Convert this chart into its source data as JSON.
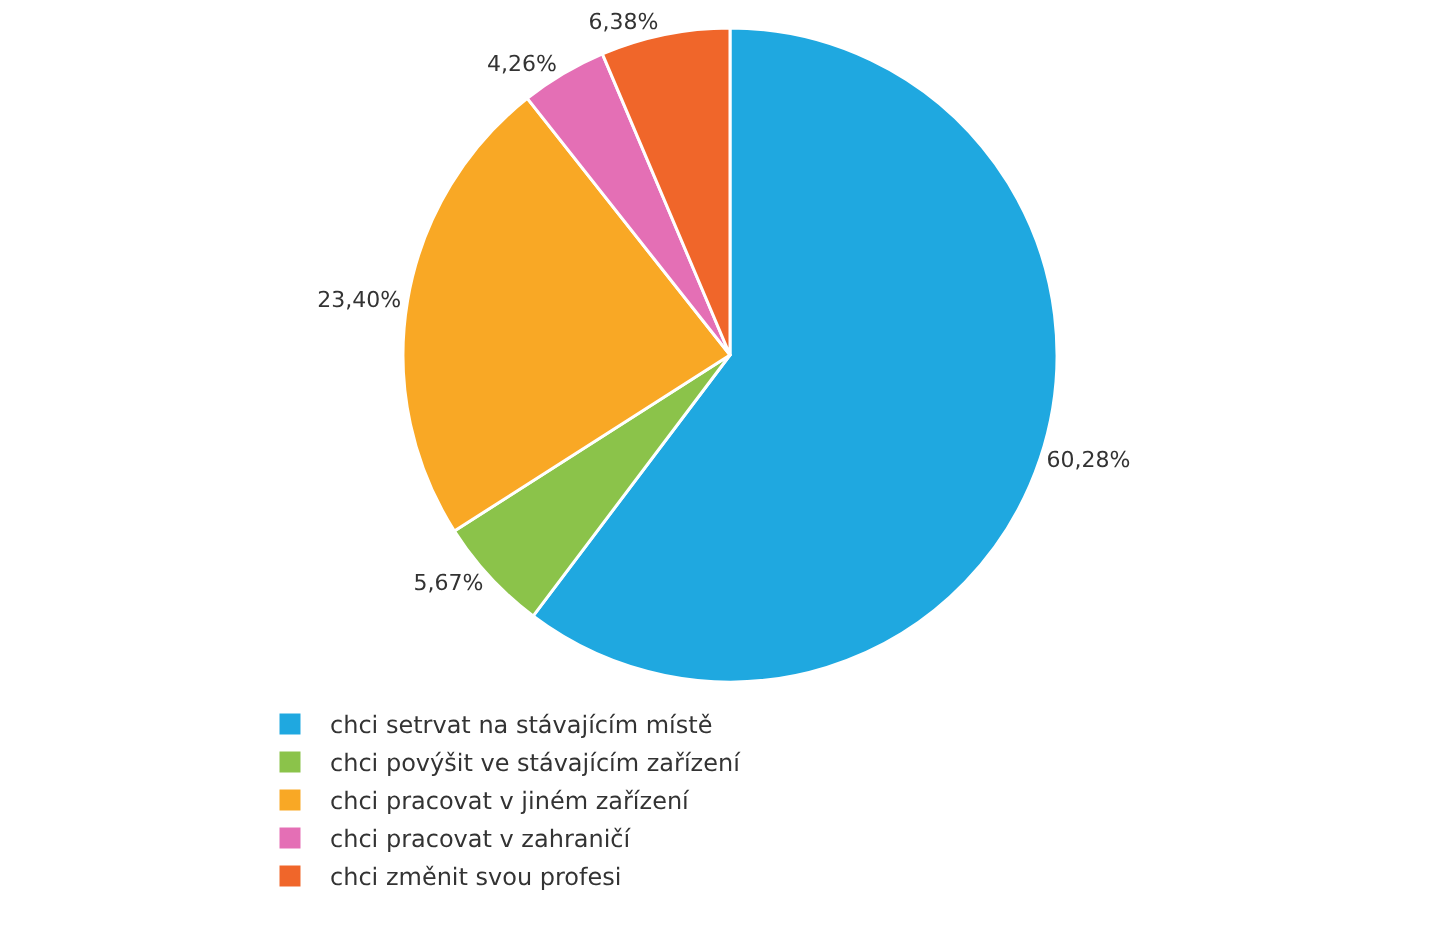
{
  "chart_data": {
    "type": "pie",
    "categories": [
      "chci setrvat na stávajícím místě",
      "chci povýšit ve stávajícím zařízení",
      "chci pracovat v jiném zařízení",
      "chci pracovat v zahraničí",
      "chci změnit svou profesi"
    ],
    "values": [
      60.28,
      5.67,
      23.4,
      4.26,
      6.38
    ],
    "value_labels": [
      "60,28%",
      "5,67%",
      "23,40%",
      "4,26%",
      "6,38%"
    ],
    "colors": [
      "#1fa8e0",
      "#8bc34a",
      "#f9a825",
      "#e46fb5",
      "#f0662a"
    ],
    "legend": "bottom"
  }
}
